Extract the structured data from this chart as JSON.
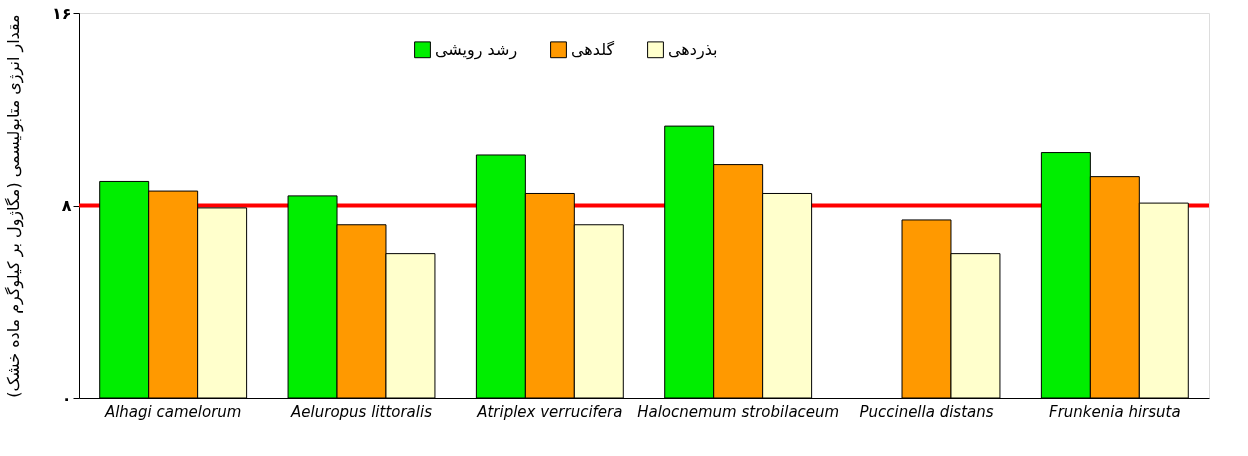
{
  "chart_data": {
    "type": "bar",
    "ylabel": "مقدار انرژی متابولیسمی (مگاژول بر کیلوگرم ماده خشک)",
    "categories": [
      "Alhagi camelorum",
      "Aeluropus littoralis",
      "Atriplex verrucifera",
      "Halocnemum strobilaceum",
      "Puccinella distans",
      "Frunkenia hirsuta"
    ],
    "series": [
      {
        "name": "رشد رویشی",
        "color": "#00ee00",
        "values": [
          9.0,
          8.4,
          10.1,
          11.3,
          null,
          10.2
        ]
      },
      {
        "name": "گلدهی",
        "color": "#ff9900",
        "values": [
          8.6,
          7.2,
          8.5,
          9.7,
          7.4,
          9.2
        ]
      },
      {
        "name": "بذردهی",
        "color": "#ffffcc",
        "values": [
          7.9,
          6.0,
          7.2,
          8.5,
          6.0,
          8.1
        ]
      }
    ],
    "ylim": [
      0,
      16
    ],
    "yticks": [
      {
        "value": 0,
        "label": "۰"
      },
      {
        "value": 8,
        "label": "۸"
      },
      {
        "value": 16,
        "label": "۱۶"
      }
    ],
    "ref_lines": [
      {
        "axis": "y",
        "value": 8,
        "color": "#ff0000"
      }
    ],
    "grid": false,
    "legend": "top"
  }
}
